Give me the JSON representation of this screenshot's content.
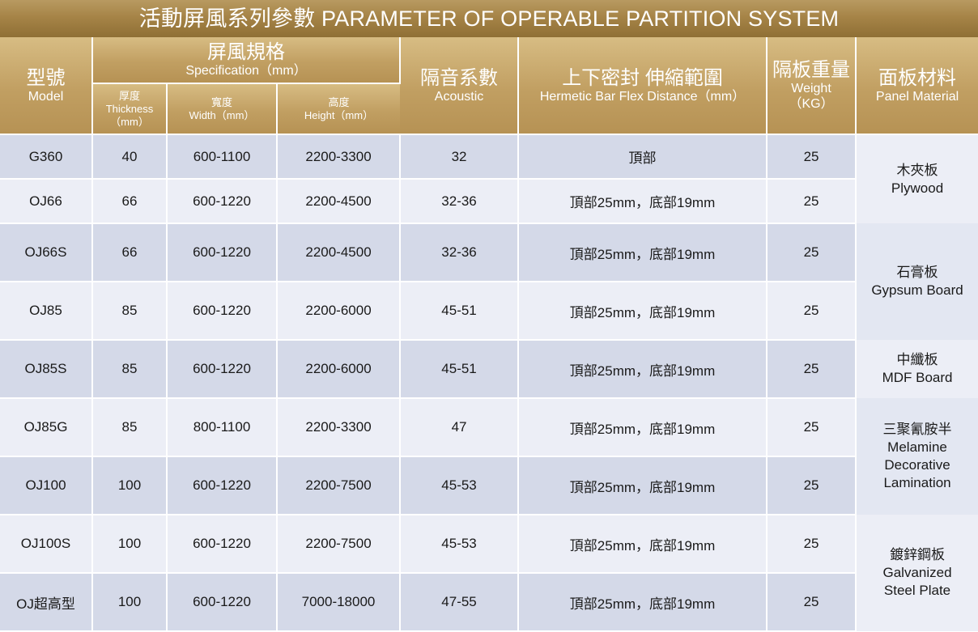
{
  "title": "活動屏風系列參數 PARAMETER OF OPERABLE PARTITION SYSTEM",
  "header": {
    "model_zh": "型號",
    "model_en": "Model",
    "spec_zh": "屏風規格",
    "spec_en": "Specification（mm）",
    "thickness_zh": "厚度",
    "thickness_en": "Thickness",
    "thickness_unit": "（mm）",
    "width_zh": "寬度",
    "width_en": "Width（mm）",
    "height_zh": "高度",
    "height_en": "Height（mm）",
    "acoustic_zh": "隔音系數",
    "acoustic_en": "Acoustic",
    "seal_zh": "上下密封 伸縮範圍",
    "seal_en": "Hermetic Bar Flex Distance（mm）",
    "weight_zh": "隔板重量",
    "weight_en": "Weight",
    "weight_unit": "（KG）",
    "material_zh": "面板材料",
    "material_en": "Panel Material"
  },
  "rows": [
    {
      "model": "G360",
      "thickness": "40",
      "width": "600-1100",
      "height": "2200-3300",
      "acoustic": "32",
      "seal": "頂部",
      "weight": "25"
    },
    {
      "model": "OJ66",
      "thickness": "66",
      "width": "600-1220",
      "height": "2200-4500",
      "acoustic": "32-36",
      "seal": "頂部25mm，底部19mm",
      "weight": "25"
    },
    {
      "model": "OJ66S",
      "thickness": "66",
      "width": "600-1220",
      "height": "2200-4500",
      "acoustic": "32-36",
      "seal": "頂部25mm，底部19mm",
      "weight": "25"
    },
    {
      "model": "OJ85",
      "thickness": "85",
      "width": "600-1220",
      "height": "2200-6000",
      "acoustic": "45-51",
      "seal": "頂部25mm，底部19mm",
      "weight": "25"
    },
    {
      "model": "OJ85S",
      "thickness": "85",
      "width": "600-1220",
      "height": "2200-6000",
      "acoustic": "45-51",
      "seal": "頂部25mm，底部19mm",
      "weight": "25"
    },
    {
      "model": "OJ85G",
      "thickness": "85",
      "width": "800-1100",
      "height": "2200-3300",
      "acoustic": "47",
      "seal": "頂部25mm，底部19mm",
      "weight": "25"
    },
    {
      "model": "OJ100",
      "thickness": "100",
      "width": "600-1220",
      "height": "2200-7500",
      "acoustic": "45-53",
      "seal": "頂部25mm，底部19mm",
      "weight": "25"
    },
    {
      "model": "OJ100S",
      "thickness": "100",
      "width": "600-1220",
      "height": "2200-7500",
      "acoustic": "45-53",
      "seal": "頂部25mm，底部19mm",
      "weight": "25"
    },
    {
      "model": "OJ超高型",
      "thickness": "100",
      "width": "600-1220",
      "height": "7000-18000",
      "acoustic": "47-55",
      "seal": "頂部25mm，底部19mm",
      "weight": "25"
    }
  ],
  "materials": [
    {
      "zh": "木夾板",
      "en": "Plywood"
    },
    {
      "zh": "石膏板",
      "en": "Gypsum Board"
    },
    {
      "zh": "中纖板",
      "en": "MDF Board"
    },
    {
      "zh": "三聚氰胺半",
      "en": "Melamine Decorative Lamination"
    },
    {
      "zh": "鍍鋅鋼板",
      "en": "Galvanized Steel Plate"
    }
  ],
  "colors": {
    "title_bar": "#a68447",
    "header_gold": "#c19f62",
    "row_dark": "#d4d9e8",
    "row_light": "#eceef6"
  }
}
